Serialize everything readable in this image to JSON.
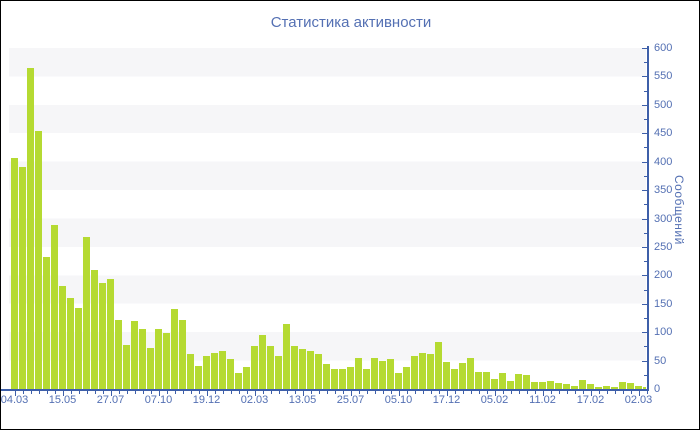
{
  "title": "Статистика активности",
  "chart_data": {
    "type": "bar",
    "title": "Статистика активности",
    "xlabel": "",
    "ylabel": "Сообщений",
    "ylim": [
      0,
      600
    ],
    "y_major_step": 50,
    "y_minor_step": 25,
    "legend_position": "none",
    "grid": "alternating horizontal bands of 50 units, top band shaded",
    "x_tick_labels": [
      "04.03",
      "15.05",
      "27.07",
      "07.10",
      "19.12",
      "02.03",
      "13.05",
      "25.07",
      "05.10",
      "17.12",
      "05.02",
      "11.02",
      "17.02",
      "02.03"
    ],
    "x_ticks_every_n_bars": 6,
    "values": [
      407,
      390,
      565,
      454,
      232,
      288,
      181,
      160,
      143,
      268,
      210,
      186,
      194,
      121,
      77,
      120,
      105,
      72,
      105,
      99,
      140,
      122,
      61,
      41,
      58,
      64,
      66,
      52,
      29,
      38,
      76,
      95,
      76,
      58,
      115,
      76,
      70,
      66,
      61,
      44,
      35,
      35,
      38,
      55,
      35,
      55,
      49,
      52,
      29,
      38,
      58,
      64,
      62,
      82,
      47,
      36,
      45,
      55,
      30,
      30,
      18,
      28,
      14,
      26,
      24,
      13,
      12,
      14,
      10,
      8,
      6,
      16,
      8,
      4,
      5,
      4,
      12,
      10,
      5,
      3
    ],
    "colors": {
      "bar": "#b5da32",
      "stripe": "#f6f6f8",
      "background": "#ffffff",
      "axis": "#3e5fa9",
      "text": "#5470b3"
    }
  }
}
